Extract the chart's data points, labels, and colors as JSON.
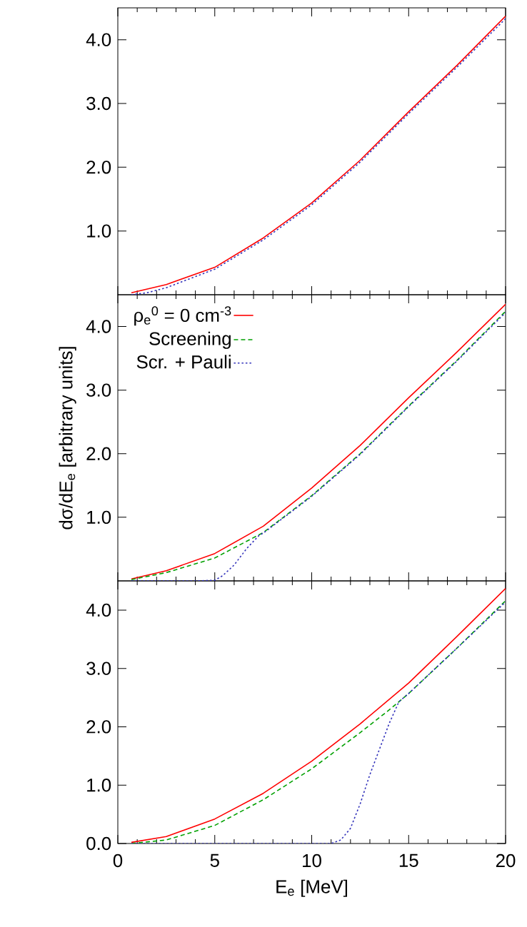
{
  "chart_data": [
    {
      "type": "line",
      "xlim": [
        0,
        20
      ],
      "ylim": [
        0,
        4.5
      ],
      "xticks": [
        0,
        5,
        10,
        15,
        20
      ],
      "yticks": [
        {
          "value": 1,
          "label": "1.0"
        },
        {
          "value": 2,
          "label": "2.0"
        },
        {
          "value": 3,
          "label": "3.0"
        },
        {
          "value": 4,
          "label": "4.0"
        }
      ],
      "tick_labels": "y",
      "series": [
        {
          "color": "#ff0000",
          "line_style": "solid",
          "x": [
            0.7,
            2.5,
            5,
            7.5,
            10,
            12.5,
            15,
            17.5,
            20
          ],
          "values": [
            0.03,
            0.16,
            0.43,
            0.89,
            1.44,
            2.11,
            2.87,
            3.6,
            4.37
          ]
        },
        {
          "color": "#3333bb",
          "line_style": "dotted",
          "x": [
            0.7,
            1.5,
            2.5,
            5,
            7.5,
            10,
            12.5,
            15,
            17.5,
            20
          ],
          "values": [
            0,
            0.03,
            0.11,
            0.4,
            0.86,
            1.41,
            2.08,
            2.84,
            3.57,
            4.33
          ]
        }
      ]
    },
    {
      "type": "line",
      "ylabel": "dσ/dE$_{e}$ [arbitrary units]",
      "xlim": [
        0,
        20
      ],
      "ylim": [
        0,
        4.5
      ],
      "xticks": [
        0,
        5,
        10,
        15,
        20
      ],
      "yticks": [
        {
          "value": 1,
          "label": "1.0"
        },
        {
          "value": 2,
          "label": "2.0"
        },
        {
          "value": 3,
          "label": "3.0"
        },
        {
          "value": 4,
          "label": "4.0"
        }
      ],
      "tick_labels": "y",
      "legend": "top left",
      "series": [
        {
          "name": "ρ$_{e}$$^{0}$ = 0 cm$^{-3}$",
          "color": "#ff0000",
          "line_style": "solid",
          "x": [
            0.7,
            2.5,
            5,
            7.5,
            10,
            12.5,
            15,
            17.5,
            20
          ],
          "values": [
            0.03,
            0.16,
            0.43,
            0.86,
            1.46,
            2.13,
            2.88,
            3.6,
            4.35
          ]
        },
        {
          "name": "Screening",
          "color": "#00a000",
          "line_style": "dashed",
          "x": [
            0.7,
            2.5,
            5,
            7.5,
            10,
            12.5,
            15,
            17.5,
            20
          ],
          "values": [
            0.02,
            0.13,
            0.36,
            0.76,
            1.34,
            2.0,
            2.75,
            3.47,
            4.24
          ]
        },
        {
          "name": "Scr. + Pauli",
          "color": "#3333bb",
          "line_style": "dotted",
          "x": [
            0.7,
            4,
            5,
            5.4,
            6,
            6.65,
            7.3,
            7.5,
            10,
            12.5,
            15,
            17.5,
            20
          ],
          "values": [
            0,
            0,
            0.01,
            0.08,
            0.25,
            0.51,
            0.72,
            0.75,
            1.33,
            1.99,
            2.74,
            3.46,
            4.22
          ]
        }
      ]
    },
    {
      "type": "line",
      "xlabel": "E$_{e}$ [MeV]",
      "xlim": [
        0,
        20
      ],
      "ylim": [
        0,
        4.5
      ],
      "xticks": [
        0,
        5,
        10,
        15,
        20
      ],
      "yticks": [
        {
          "value": 0,
          "label": "0.0"
        },
        {
          "value": 1,
          "label": "1.0"
        },
        {
          "value": 2,
          "label": "2.0"
        },
        {
          "value": 3,
          "label": "3.0"
        },
        {
          "value": 4,
          "label": "4.0"
        }
      ],
      "series": [
        {
          "color": "#ff0000",
          "line_style": "solid",
          "x": [
            0.7,
            2.5,
            5,
            7.5,
            10,
            12.5,
            15,
            17.5,
            20
          ],
          "values": [
            0.02,
            0.12,
            0.42,
            0.86,
            1.41,
            2.05,
            2.75,
            3.55,
            4.37
          ]
        },
        {
          "color": "#00a000",
          "line_style": "dashed",
          "x": [
            0.7,
            1,
            2.5,
            5,
            7.5,
            10,
            12.5,
            14,
            15,
            17.5,
            20
          ],
          "values": [
            0,
            0.01,
            0.06,
            0.31,
            0.75,
            1.28,
            1.9,
            2.29,
            2.57,
            3.35,
            4.16
          ]
        },
        {
          "color": "#3333bb",
          "line_style": "dotted",
          "x": [
            0.7,
            10,
            11,
            11.5,
            12,
            12.5,
            13,
            13.5,
            14,
            14.5,
            15,
            17.5,
            20
          ],
          "values": [
            0,
            0,
            0,
            0.06,
            0.26,
            0.68,
            1.18,
            1.62,
            2.06,
            2.43,
            2.57,
            3.35,
            4.14
          ]
        }
      ]
    }
  ]
}
